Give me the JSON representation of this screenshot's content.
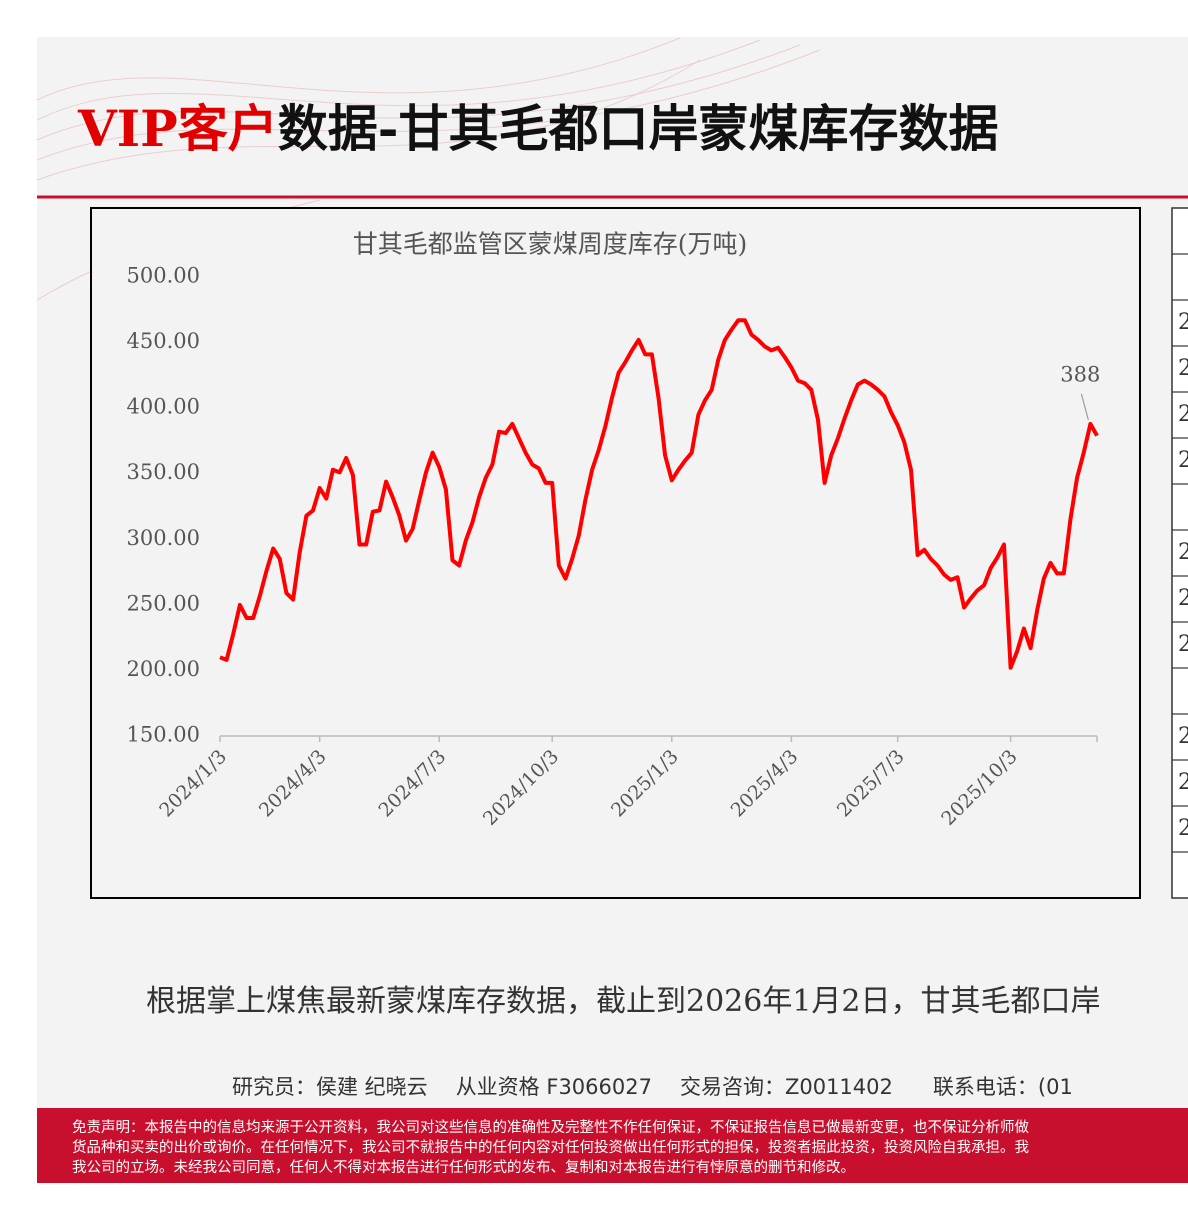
{
  "header": {
    "highlight": "VIP客户",
    "title": "数据-甘其毛都口岸蒙煤库存数据"
  },
  "chart_data": {
    "type": "line",
    "title": "甘其毛都监管区蒙煤周度库存(万吨)",
    "categories": [
      "2024/1/3",
      null,
      null,
      null,
      null,
      null,
      null,
      null,
      null,
      null,
      null,
      null,
      null,
      null,
      null,
      "2024/4/3",
      null,
      null,
      null,
      null,
      null,
      null,
      null,
      null,
      null,
      null,
      null,
      null,
      null,
      null,
      null,
      null,
      null,
      "2024/7/3",
      null,
      null,
      null,
      null,
      null,
      null,
      null,
      null,
      null,
      null,
      null,
      null,
      null,
      null,
      null,
      null,
      "2024/10/3",
      null,
      null,
      null,
      null,
      null,
      null,
      null,
      null,
      null,
      null,
      null,
      null,
      null,
      null,
      null,
      null,
      null,
      "2025/1/3",
      null,
      null,
      null,
      null,
      null,
      null,
      null,
      null,
      null,
      null,
      null,
      null,
      null,
      null,
      null,
      null,
      null,
      "2025/4/3",
      null,
      null,
      null,
      null,
      null,
      null,
      null,
      null,
      null,
      null,
      null,
      null,
      null,
      null,
      null,
      "2025/7/3",
      null,
      null,
      null,
      null,
      null,
      null,
      null,
      null,
      null,
      null,
      null,
      null,
      null,
      null,
      null,
      null,
      "2025/10/3",
      null,
      null,
      null,
      null,
      null,
      null,
      null,
      null,
      null,
      null,
      null,
      null,
      null
    ],
    "series": [
      {
        "name": "甘其毛都监管区蒙煤周度库存",
        "color": "#ff0000",
        "values": [
          210,
          208,
          228,
          250,
          240,
          240,
          257,
          276,
          293,
          285,
          259,
          254,
          290,
          318,
          322,
          339,
          331,
          353,
          351,
          362,
          349,
          296,
          296,
          321,
          322,
          344,
          332,
          318,
          299,
          308,
          330,
          351,
          366,
          355,
          338,
          284,
          280,
          299,
          313,
          332,
          347,
          357,
          382,
          381,
          388,
          377,
          366,
          357,
          354,
          343,
          343,
          280,
          270,
          285,
          303,
          330,
          353,
          368,
          386,
          408,
          427,
          435,
          444,
          452,
          441,
          441,
          408,
          364,
          345,
          353,
          360,
          366,
          395,
          406,
          414,
          437,
          452,
          460,
          467,
          467,
          456,
          452,
          447,
          444,
          446,
          439,
          431,
          421,
          419,
          414,
          391,
          343,
          364,
          377,
          392,
          406,
          418,
          421,
          418,
          414,
          409,
          397,
          387,
          374,
          353,
          288,
          292,
          285,
          280,
          273,
          269,
          271,
          248,
          255,
          261,
          265,
          278,
          286,
          296,
          202,
          215,
          232,
          217,
          246,
          270,
          282,
          274,
          274,
          315,
          347,
          366,
          388,
          379
        ]
      }
    ],
    "annotate": [
      131
    ],
    "ylim": [
      150,
      500
    ],
    "yticks": [
      {
        "value": 150,
        "label": "150.00"
      },
      {
        "value": 200,
        "label": "200.00"
      },
      {
        "value": 250,
        "label": "250.00"
      },
      {
        "value": 300,
        "label": "300.00"
      },
      {
        "value": 350,
        "label": "350.00"
      },
      {
        "value": 400,
        "label": "400.00"
      },
      {
        "value": 450,
        "label": "450.00"
      },
      {
        "value": 500,
        "label": "500.00"
      }
    ],
    "grid": false
  },
  "side_table": {
    "cells": [
      "2",
      "2",
      "2",
      "2",
      "2",
      "2",
      "2",
      "2",
      "2",
      "2"
    ]
  },
  "summary": "根据掌上煤焦最新蒙煤库存数据，截止到2026年1月2日，甘其毛都口岸",
  "footer": [
    "研究员：侯建 纪晓云",
    "从业资格 F3066027",
    "交易咨询：Z0011402",
    "联系电话：(01"
  ],
  "disclaimer": [
    "免责声明：本报告中的信息均来源于公开资料，我公司对这些信息的准确性及完整性不作任何保证，不保证报告信息已做最新变更，也不保证分析师做",
    "货品种和买卖的出价或询价。在任何情况下，我公司不就报告中的任何内容对任何投资做出任何形式的担保，投资者据此投资，投资风险自我承担。我",
    "我公司的立场。未经我公司同意，任何人不得对本报告进行任何形式的发布、复制和对本报告进行有悖原意的删节和修改。"
  ]
}
